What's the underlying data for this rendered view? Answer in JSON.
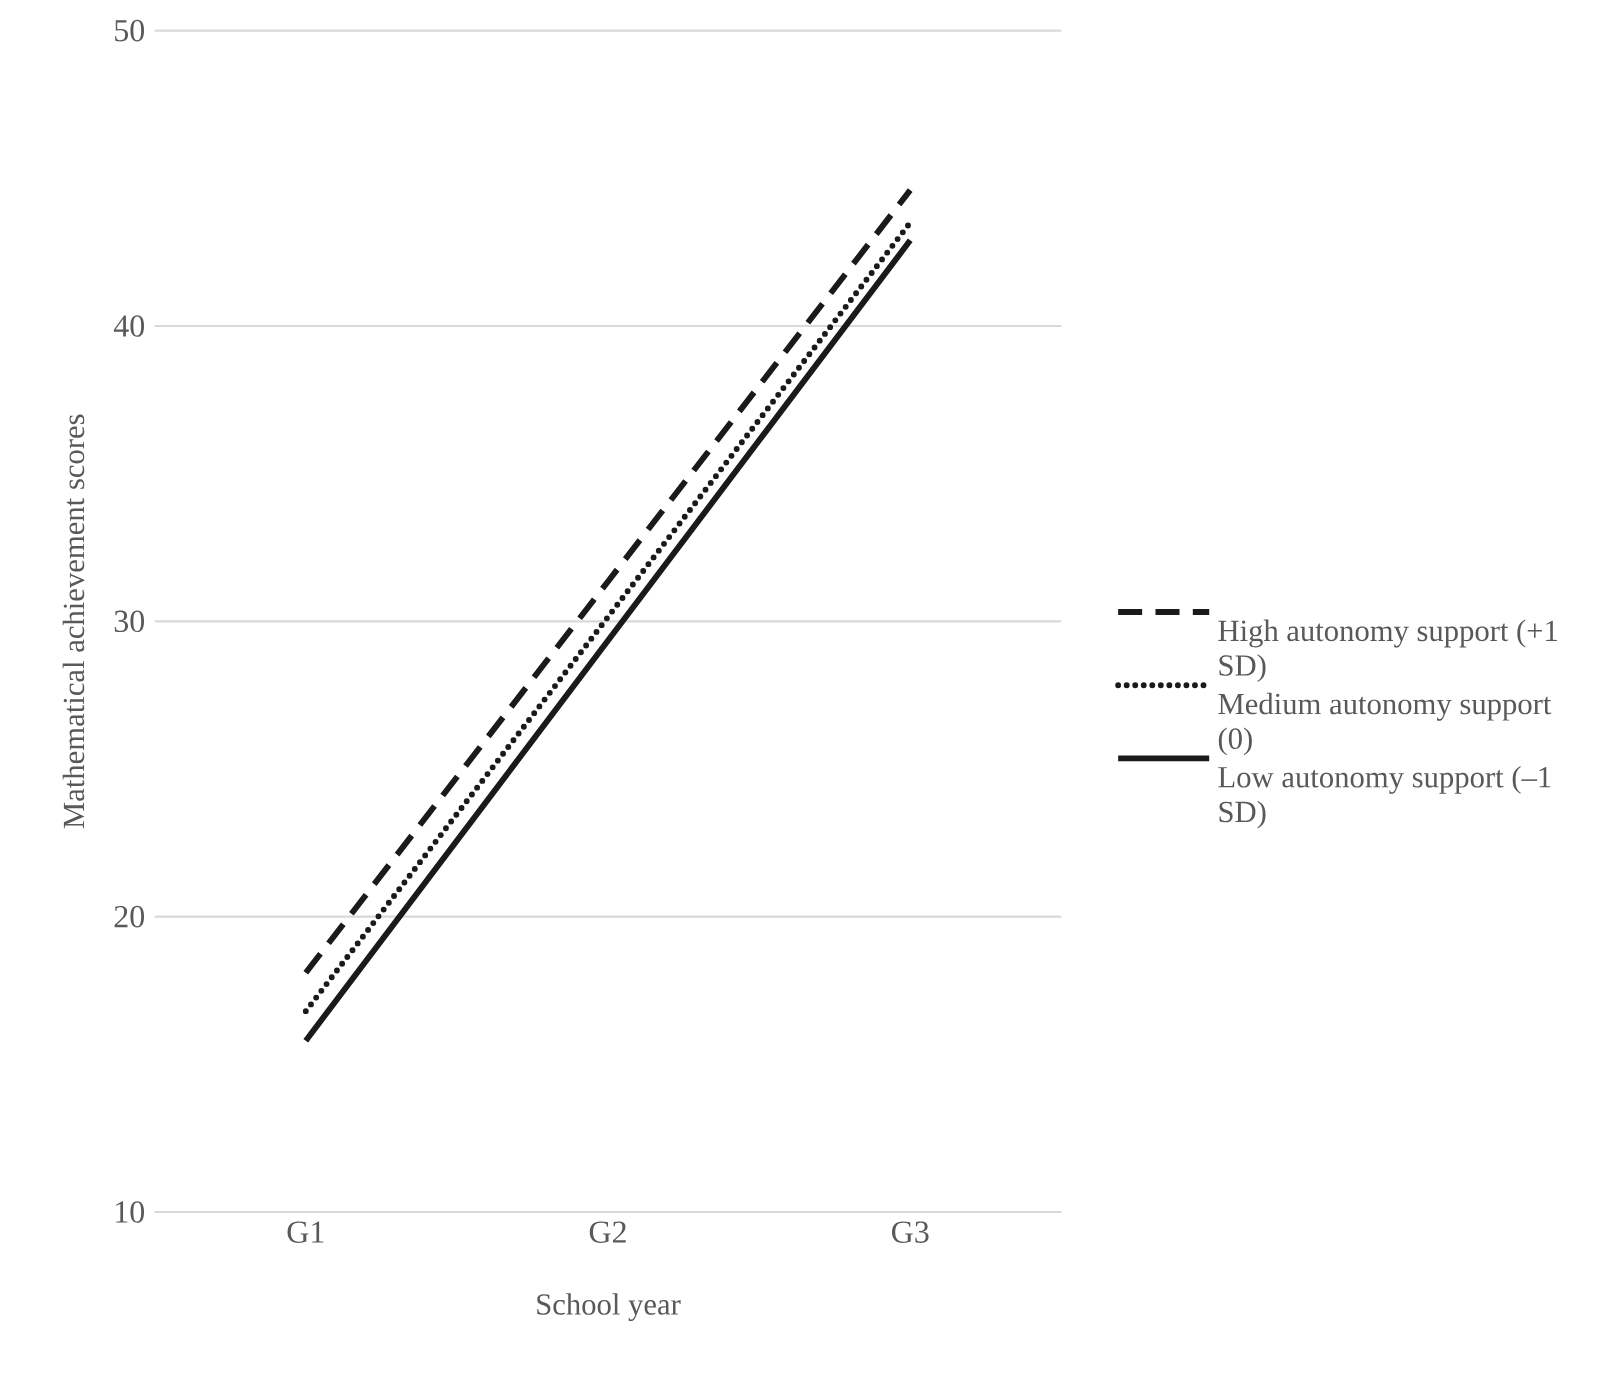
{
  "chart_data": {
    "type": "line",
    "xlabel": "School year",
    "ylabel": "Mathematical achievement scores",
    "categories": [
      "G1",
      "G2",
      "G3"
    ],
    "series": [
      {
        "name": "High autonomy support (+1 SD)",
        "color": "#1a1a1a",
        "line_style": "dashed",
        "values": [
          18.1,
          31.35,
          44.6
        ]
      },
      {
        "name": "Medium autonomy support (0)",
        "color": "#1a1a1a",
        "line_style": "dotted",
        "values": [
          16.8,
          30.15,
          43.5
        ]
      },
      {
        "name": "Low autonomy support (–1 SD)",
        "color": "#1a1a1a",
        "line_style": "solid",
        "values": [
          15.8,
          29.35,
          42.9
        ]
      }
    ],
    "ylim": [
      10,
      50
    ],
    "yticks": [
      10,
      20,
      30,
      40,
      50
    ],
    "grid": "y",
    "legend": "right",
    "marker": "none"
  }
}
